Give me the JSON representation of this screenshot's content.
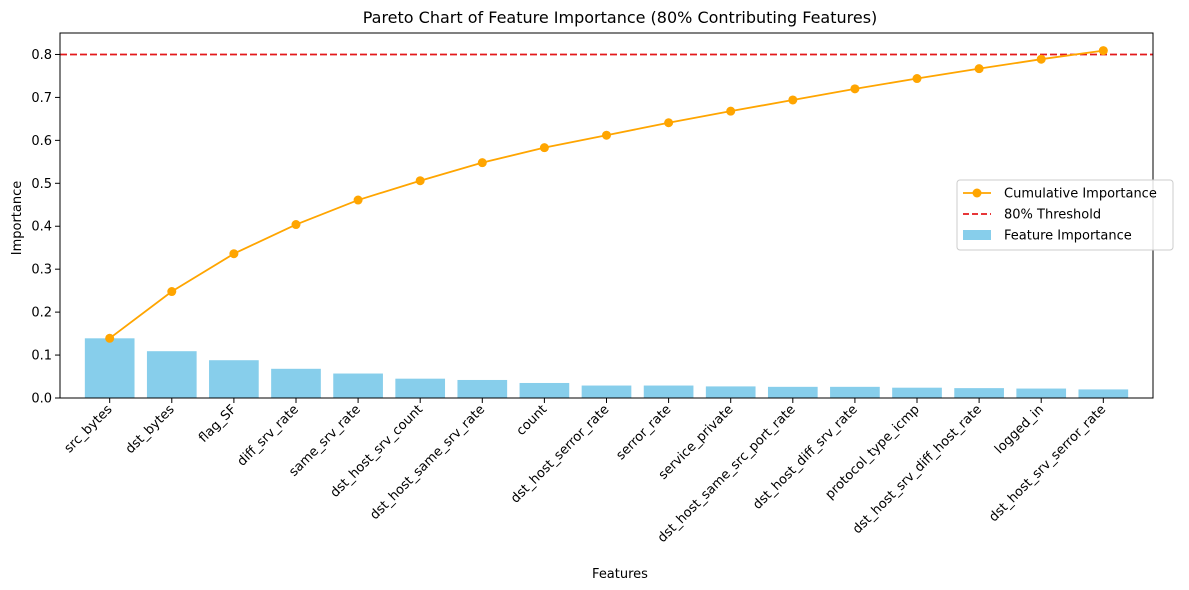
{
  "chart_data": {
    "type": "bar+line",
    "title": "Pareto Chart of Feature Importance (80% Contributing Features)",
    "xlabel": "Features",
    "ylabel": "Importance",
    "ylim": [
      0,
      0.85
    ],
    "yticks": [
      0.0,
      0.1,
      0.2,
      0.3,
      0.4,
      0.5,
      0.6,
      0.7,
      0.8
    ],
    "categories": [
      "src_bytes",
      "dst_bytes",
      "flag_SF",
      "diff_srv_rate",
      "same_srv_rate",
      "dst_host_srv_count",
      "dst_host_same_srv_rate",
      "count",
      "dst_host_serror_rate",
      "serror_rate",
      "service_private",
      "dst_host_same_src_port_rate",
      "dst_host_diff_srv_rate",
      "protocol_type_icmp",
      "dst_host_srv_diff_host_rate",
      "logged_in",
      "dst_host_srv_serror_rate"
    ],
    "series": [
      {
        "name": "Feature Importance",
        "kind": "bar",
        "color": "#87ceeb",
        "values": [
          0.139,
          0.109,
          0.088,
          0.068,
          0.057,
          0.045,
          0.042,
          0.035,
          0.029,
          0.029,
          0.027,
          0.026,
          0.026,
          0.024,
          0.023,
          0.022,
          0.02
        ]
      },
      {
        "name": "Cumulative Importance",
        "kind": "line",
        "color": "#ffa500",
        "values": [
          0.139,
          0.248,
          0.336,
          0.404,
          0.461,
          0.506,
          0.548,
          0.583,
          0.612,
          0.641,
          0.668,
          0.694,
          0.72,
          0.744,
          0.767,
          0.789,
          0.809
        ]
      }
    ],
    "threshold": {
      "name": "80% Threshold",
      "value": 0.8,
      "color": "#e41a1c",
      "style": "dashed"
    },
    "grid": false,
    "legend": {
      "placement": "center-right",
      "items": [
        "Cumulative Importance",
        "80% Threshold",
        "Feature Importance"
      ]
    }
  }
}
